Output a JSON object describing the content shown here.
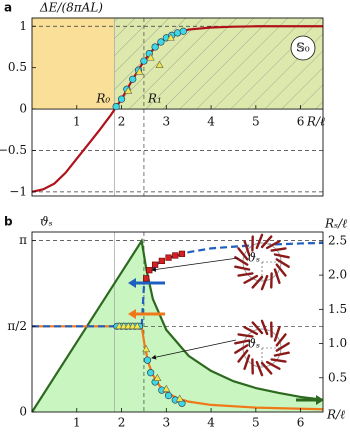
{
  "chart_data": [
    {
      "type": "line",
      "panel_label": "a",
      "y_label": "ΔE/(8πAL)",
      "x_label": "R/ℓ",
      "xlim": [
        0,
        6.5
      ],
      "ylim": [
        -1.05,
        1.1
      ],
      "xticks": [
        1,
        2,
        3,
        4,
        5,
        6
      ],
      "yticks": [
        {
          "value": -1,
          "label": "−1"
        },
        {
          "value": -0.5,
          "label": "−0.5"
        },
        0,
        0.5,
        1
      ],
      "markers": [
        {
          "label": "R₀",
          "x": 1.84
        },
        {
          "label": "R₁",
          "x": 2.5
        }
      ],
      "region_colors": [
        "#f9df98",
        "#dde9ac"
      ],
      "phase_label": "𝕊₀",
      "series": [
        {
          "color": "#b0121b",
          "style": "solid",
          "x": [
            0,
            0.25,
            0.5,
            0.75,
            1,
            1.25,
            1.5,
            1.75,
            2,
            2.25,
            2.5,
            2.75,
            3,
            3.25,
            3.5,
            4,
            4.5,
            5,
            5.5,
            6,
            6.5
          ],
          "values": [
            -1,
            -0.97,
            -0.9,
            -0.77,
            -0.6,
            -0.43,
            -0.26,
            -0.08,
            0.12,
            0.36,
            0.58,
            0.75,
            0.86,
            0.92,
            0.96,
            0.985,
            0.995,
            1,
            1,
            1,
            1
          ]
        },
        {
          "color": "#3fd6e6",
          "marker": "circle",
          "x": [
            1.88,
            2.0,
            2.12,
            2.25,
            2.38,
            2.5,
            2.62,
            2.75,
            2.88,
            3.0,
            3.12,
            3.25,
            3.38
          ],
          "values": [
            0.03,
            0.12,
            0.24,
            0.36,
            0.47,
            0.58,
            0.67,
            0.75,
            0.81,
            0.86,
            0.89,
            0.92,
            0.94
          ]
        },
        {
          "color": "#f2e64a",
          "marker": "triangle",
          "x": [
            2.15,
            2.4,
            2.65,
            2.85,
            3.1
          ],
          "values": [
            0.22,
            0.45,
            0.62,
            0.53,
            0.86
          ]
        }
      ]
    },
    {
      "type": "line",
      "panel_label": "b",
      "y_label": "ϑₛ",
      "y2_label": "Rₛ/ℓ",
      "x_label": "R/ℓ",
      "xlim": [
        0,
        6.5
      ],
      "ylim": [
        0,
        3.3
      ],
      "xticks": [
        1,
        2,
        3,
        4,
        5,
        6
      ],
      "yticks": [
        0,
        {
          "value": 1.5708,
          "label": "π/2"
        },
        {
          "value": 3.1416,
          "label": "π"
        }
      ],
      "y2lim": [
        0,
        2.63
      ],
      "y2ticks": [
        0.5,
        {
          "value": 1,
          "label": "1.0"
        },
        1.5,
        {
          "value": 2,
          "label": "2.0"
        },
        2.5
      ],
      "series": [
        {
          "color": "#2d6a1f",
          "fill": "#c8f5c0",
          "style": "solid",
          "axis": "y2",
          "x": [
            0,
            2.45,
            2.55,
            2.7,
            3,
            3.5,
            4,
            4.5,
            5,
            5.5,
            6,
            6.5
          ],
          "values": [
            0,
            2.5,
            2.1,
            1.65,
            1.2,
            0.82,
            0.6,
            0.45,
            0.35,
            0.28,
            0.22,
            0.18
          ]
        },
        {
          "color": "#f07818",
          "style": "solid",
          "x": [
            0,
            2.45,
            2.52,
            2.6,
            2.7,
            2.85,
            3,
            3.25,
            3.5,
            4,
            5,
            6,
            6.5
          ],
          "values": [
            1.5708,
            1.5708,
            1.2,
            0.9,
            0.68,
            0.48,
            0.36,
            0.25,
            0.19,
            0.13,
            0.08,
            0.06,
            0.05
          ]
        },
        {
          "color": "#1f5fc0",
          "style": "dashed",
          "x": [
            0,
            2.45,
            2.5,
            2.6,
            2.8,
            3,
            3.5,
            4,
            5,
            6,
            6.5
          ],
          "values": [
            1.5708,
            1.5708,
            2.3,
            2.55,
            2.72,
            2.81,
            2.93,
            3.0,
            3.06,
            3.09,
            3.1
          ]
        },
        {
          "color": "#d42020",
          "marker": "square",
          "x": [
            2.55,
            2.62,
            2.75,
            2.9,
            3.05,
            3.2,
            3.35
          ],
          "values": [
            2.45,
            2.6,
            2.7,
            2.77,
            2.83,
            2.87,
            2.9
          ]
        },
        {
          "color": "#3fd6e6",
          "marker": "circle",
          "x": [
            1.9,
            2.0,
            2.1,
            2.2,
            2.3,
            2.4,
            2.58,
            2.65,
            2.75,
            2.9,
            3.05,
            3.2,
            3.35
          ],
          "values": [
            1.5708,
            1.5708,
            1.5708,
            1.5708,
            1.5708,
            1.5708,
            0.95,
            0.72,
            0.55,
            0.4,
            0.3,
            0.22,
            0.16
          ]
        },
        {
          "color": "#f2e64a",
          "marker": "triangle",
          "x": [
            1.95,
            2.05,
            2.15,
            2.25,
            2.35,
            2.55,
            2.8,
            3.0,
            3.3
          ],
          "values": [
            1.5708,
            1.5708,
            1.5708,
            1.5708,
            1.5708,
            1.15,
            0.62,
            0.42,
            0.24
          ]
        }
      ]
    }
  ]
}
